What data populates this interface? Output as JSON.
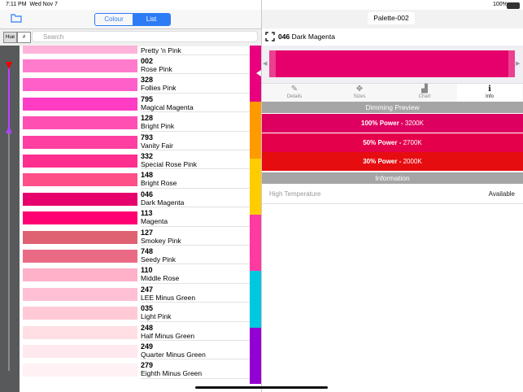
{
  "status_bar": {
    "time": "7:11 PM",
    "date": "Wed Nov 7",
    "battery": "100%"
  },
  "toolbar": {
    "segments": [
      "Colour",
      "List"
    ],
    "selected": 1,
    "title": "Palette-002"
  },
  "filter": {
    "buttons": [
      "Hue",
      "#"
    ],
    "search_placeholder": "Search"
  },
  "list": {
    "rows": [
      {
        "name": "Pretty 'n Pink",
        "color": "#ffb2da"
      },
      {
        "number": "002",
        "name": "Rose Pink",
        "color": "#ff7ccc"
      },
      {
        "number": "328",
        "name": "Follies Pink",
        "color": "#ff5fc9"
      },
      {
        "number": "795",
        "name": "Magical Magenta",
        "color": "#ff3cc4"
      },
      {
        "number": "128",
        "name": "Bright Pink",
        "color": "#ff4fb2"
      },
      {
        "number": "793",
        "name": "Vanity Fair",
        "color": "#ff3ea2"
      },
      {
        "number": "332",
        "name": "Special Rose Pink",
        "color": "#ff2f90"
      },
      {
        "number": "148",
        "name": "Bright Rose",
        "color": "#ff4f88"
      },
      {
        "number": "046",
        "name": "Dark Magenta",
        "color": "#e5006b"
      },
      {
        "number": "113",
        "name": "Magenta",
        "color": "#ff0073"
      },
      {
        "number": "127",
        "name": "Smokey Pink",
        "color": "#df6273"
      },
      {
        "number": "748",
        "name": "Seedy Pink",
        "color": "#ea6a86"
      },
      {
        "number": "110",
        "name": "Middle Rose",
        "color": "#ffb1c9"
      },
      {
        "number": "247",
        "name": "LEE Minus Green",
        "color": "#ffc0d5"
      },
      {
        "number": "035",
        "name": "Light Pink",
        "color": "#ffc9d6"
      },
      {
        "number": "248",
        "name": "Half Minus Green",
        "color": "#ffdfe4"
      },
      {
        "number": "249",
        "name": "Quarter Minus Green",
        "color": "#ffe9ee"
      },
      {
        "number": "279",
        "name": "Eighth Minus Green",
        "color": "#fff1f4"
      }
    ],
    "index_strip": [
      "#e8007e",
      "#ff9a00",
      "#ffcc00",
      "#ff3aa0",
      "#00c8e0",
      "#9400d3"
    ]
  },
  "detail": {
    "number": "046",
    "name": "Dark Magenta",
    "color": "#e5006b",
    "tabs": [
      "Details",
      "Sizes",
      "Chart",
      "Info"
    ],
    "selected_tab": 3,
    "dimming_title": "Dimming Preview",
    "dimming": [
      {
        "power": "100% Power -",
        "temperature": "3200K",
        "color": "#de0060"
      },
      {
        "power": "50% Power -",
        "temperature": "2700K",
        "color": "#e4004a"
      },
      {
        "power": "30% Power -",
        "temperature": "2000K",
        "color": "#e60d10"
      }
    ],
    "info_title": "Information",
    "info": [
      {
        "label": "High Temperature",
        "value": "Available"
      }
    ]
  }
}
